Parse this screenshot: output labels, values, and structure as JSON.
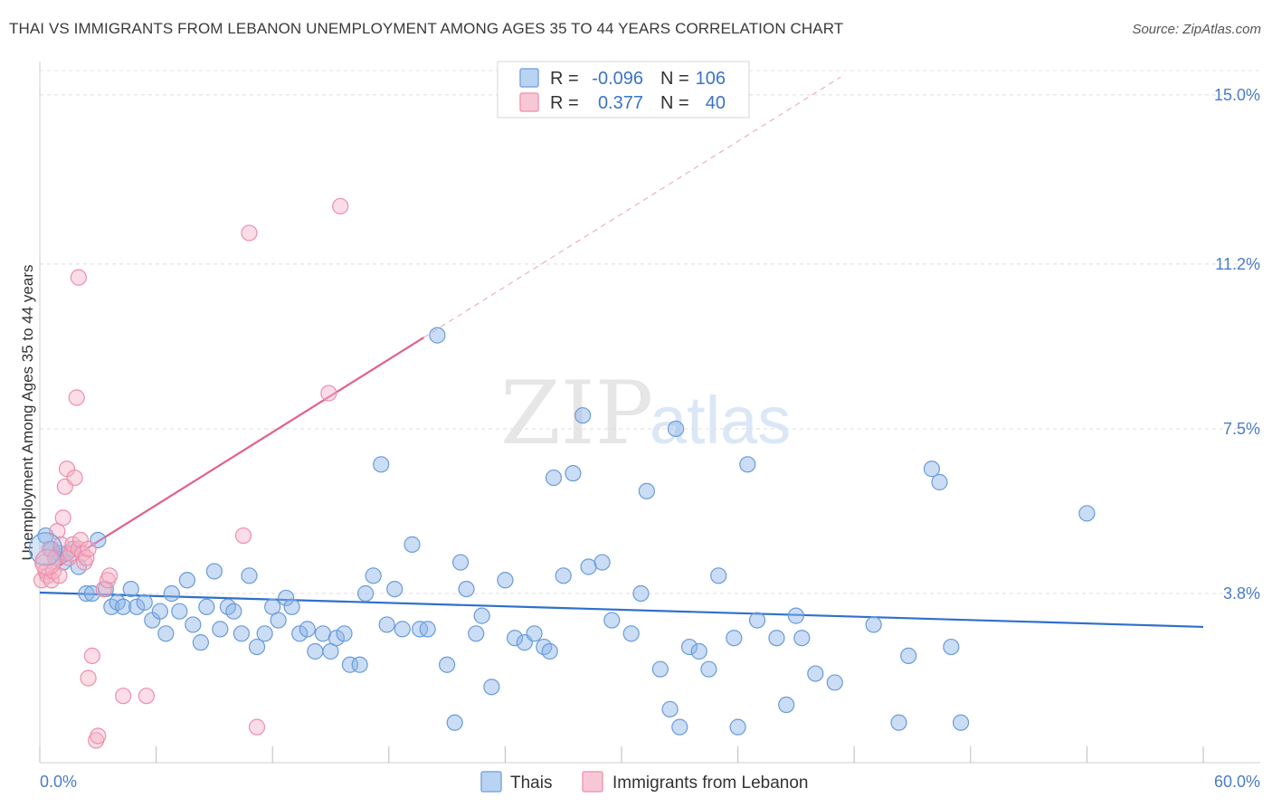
{
  "title": "THAI VS IMMIGRANTS FROM LEBANON UNEMPLOYMENT AMONG AGES 35 TO 44 YEARS CORRELATION CHART",
  "source": "Source: ZipAtlas.com",
  "watermark": {
    "zip": "ZIP",
    "atlas": "atlas"
  },
  "chart_data": {
    "type": "scatter",
    "title": "THAI VS IMMIGRANTS FROM LEBANON UNEMPLOYMENT AMONG AGES 35 TO 44 YEARS CORRELATION CHART",
    "xlabel": "",
    "ylabel": "Unemployment Among Ages 35 to 44 years",
    "xlim": [
      0,
      60
    ],
    "ylim": [
      0,
      15.75
    ],
    "x_tick_labels": {
      "min": "0.0%",
      "max": "60.0%"
    },
    "y_ticks": [
      {
        "value": 3.8,
        "label": "3.8%"
      },
      {
        "value": 7.5,
        "label": "7.5%"
      },
      {
        "value": 11.2,
        "label": "11.2%"
      },
      {
        "value": 15.0,
        "label": "15.0%"
      }
    ],
    "legend": {
      "rows": [
        {
          "r_label": "R =",
          "r_value": "-0.096",
          "n_label": "N =",
          "n_value": "106"
        },
        {
          "r_label": "R =",
          "r_value": "0.377",
          "n_label": "N =",
          "n_value": "40"
        }
      ]
    },
    "series": [
      {
        "name": "Thais",
        "color": "#8ab4e8",
        "stroke": "#6a9bd8",
        "trend_color": "#2f6fcc",
        "r": -0.096,
        "n": 106,
        "trend": {
          "x": [
            0,
            60
          ],
          "y": [
            3.82,
            3.05
          ]
        },
        "points": [
          [
            0.3,
            5.1
          ],
          [
            0.6,
            4.8
          ],
          [
            0.8,
            4.6
          ],
          [
            1.0,
            4.7
          ],
          [
            1.2,
            4.5
          ],
          [
            1.4,
            4.7
          ],
          [
            1.7,
            4.8
          ],
          [
            2.0,
            4.4
          ],
          [
            2.4,
            3.8
          ],
          [
            2.7,
            3.8
          ],
          [
            3.0,
            5.0
          ],
          [
            3.4,
            3.9
          ],
          [
            3.7,
            3.5
          ],
          [
            4.0,
            3.6
          ],
          [
            4.3,
            3.5
          ],
          [
            4.7,
            3.9
          ],
          [
            5.0,
            3.5
          ],
          [
            5.4,
            3.6
          ],
          [
            5.8,
            3.2
          ],
          [
            6.2,
            3.4
          ],
          [
            6.5,
            2.9
          ],
          [
            6.8,
            3.8
          ],
          [
            7.2,
            3.4
          ],
          [
            7.6,
            4.1
          ],
          [
            7.9,
            3.1
          ],
          [
            8.3,
            2.7
          ],
          [
            8.6,
            3.5
          ],
          [
            9.0,
            4.3
          ],
          [
            9.3,
            3.0
          ],
          [
            9.7,
            3.5
          ],
          [
            10.0,
            3.4
          ],
          [
            10.4,
            2.9
          ],
          [
            10.8,
            4.2
          ],
          [
            11.2,
            2.6
          ],
          [
            11.6,
            2.9
          ],
          [
            12.0,
            3.5
          ],
          [
            12.3,
            3.2
          ],
          [
            12.7,
            3.7
          ],
          [
            13.0,
            3.5
          ],
          [
            13.4,
            2.9
          ],
          [
            13.8,
            3.0
          ],
          [
            14.2,
            2.5
          ],
          [
            14.6,
            2.9
          ],
          [
            15.0,
            2.5
          ],
          [
            15.3,
            2.8
          ],
          [
            15.7,
            2.9
          ],
          [
            16.0,
            2.2
          ],
          [
            16.5,
            2.2
          ],
          [
            16.8,
            3.8
          ],
          [
            17.2,
            4.2
          ],
          [
            17.6,
            6.7
          ],
          [
            17.9,
            3.1
          ],
          [
            18.3,
            3.9
          ],
          [
            18.7,
            3.0
          ],
          [
            19.2,
            4.9
          ],
          [
            19.6,
            3.0
          ],
          [
            20.0,
            3.0
          ],
          [
            20.5,
            9.6
          ],
          [
            21.0,
            2.2
          ],
          [
            21.4,
            0.9
          ],
          [
            21.7,
            4.5
          ],
          [
            22.0,
            3.9
          ],
          [
            22.5,
            2.9
          ],
          [
            22.8,
            3.3
          ],
          [
            23.3,
            1.7
          ],
          [
            24.0,
            4.1
          ],
          [
            24.5,
            2.8
          ],
          [
            25.0,
            2.7
          ],
          [
            25.5,
            2.9
          ],
          [
            26.0,
            2.6
          ],
          [
            26.3,
            2.5
          ],
          [
            26.5,
            6.4
          ],
          [
            27.0,
            4.2
          ],
          [
            27.5,
            6.5
          ],
          [
            28.0,
            7.8
          ],
          [
            28.3,
            4.4
          ],
          [
            29.0,
            4.5
          ],
          [
            29.5,
            3.2
          ],
          [
            30.5,
            2.9
          ],
          [
            31.0,
            3.8
          ],
          [
            31.3,
            6.1
          ],
          [
            32.0,
            2.1
          ],
          [
            32.5,
            1.2
          ],
          [
            32.8,
            7.5
          ],
          [
            33.0,
            0.8
          ],
          [
            33.5,
            2.6
          ],
          [
            34.0,
            2.5
          ],
          [
            34.5,
            2.1
          ],
          [
            35.0,
            4.2
          ],
          [
            35.8,
            2.8
          ],
          [
            36.0,
            0.8
          ],
          [
            36.5,
            6.7
          ],
          [
            37.0,
            3.2
          ],
          [
            38.0,
            2.8
          ],
          [
            38.5,
            1.3
          ],
          [
            39.0,
            3.3
          ],
          [
            39.3,
            2.8
          ],
          [
            40.0,
            2.0
          ],
          [
            41.0,
            1.8
          ],
          [
            43.0,
            3.1
          ],
          [
            44.3,
            0.9
          ],
          [
            44.8,
            2.4
          ],
          [
            46.0,
            6.6
          ],
          [
            46.4,
            6.3
          ],
          [
            47.0,
            2.6
          ],
          [
            47.5,
            0.9
          ],
          [
            54.0,
            5.6
          ]
        ]
      },
      {
        "name": "Immigrants from Lebanon",
        "color": "#f5b3c8",
        "stroke": "#ee8eaa",
        "trend_color": "#e2608f",
        "r": 0.377,
        "n": 40,
        "trend": {
          "x": [
            0,
            19.8
          ],
          "y": [
            4.15,
            9.55
          ]
        },
        "trend_ext": {
          "x": [
            19.8,
            41.3
          ],
          "y": [
            9.55,
            15.4
          ]
        },
        "points": [
          [
            0.1,
            4.1
          ],
          [
            0.2,
            4.5
          ],
          [
            0.3,
            4.3
          ],
          [
            0.4,
            4.2
          ],
          [
            0.5,
            4.8
          ],
          [
            0.6,
            4.1
          ],
          [
            0.7,
            4.3
          ],
          [
            0.8,
            4.6
          ],
          [
            0.9,
            5.2
          ],
          [
            1.0,
            4.2
          ],
          [
            1.1,
            4.9
          ],
          [
            1.2,
            5.5
          ],
          [
            1.3,
            6.2
          ],
          [
            1.4,
            6.6
          ],
          [
            1.5,
            4.6
          ],
          [
            1.6,
            4.7
          ],
          [
            1.7,
            4.9
          ],
          [
            1.8,
            6.4
          ],
          [
            1.9,
            8.2
          ],
          [
            2.0,
            10.9
          ],
          [
            2.0,
            4.8
          ],
          [
            2.1,
            5.0
          ],
          [
            2.2,
            4.7
          ],
          [
            2.3,
            4.5
          ],
          [
            2.4,
            4.6
          ],
          [
            2.5,
            4.8
          ],
          [
            2.5,
            1.9
          ],
          [
            2.7,
            2.4
          ],
          [
            2.9,
            0.5
          ],
          [
            3.0,
            0.6
          ],
          [
            3.3,
            3.9
          ],
          [
            3.5,
            4.1
          ],
          [
            3.6,
            4.2
          ],
          [
            4.3,
            1.5
          ],
          [
            5.5,
            1.5
          ],
          [
            10.5,
            5.1
          ],
          [
            10.8,
            11.9
          ],
          [
            11.2,
            0.8
          ],
          [
            14.9,
            8.3
          ],
          [
            15.5,
            12.5
          ]
        ]
      }
    ]
  },
  "bottom_legend": [
    {
      "label": "Thais"
    },
    {
      "label": "Immigrants from Lebanon"
    }
  ]
}
